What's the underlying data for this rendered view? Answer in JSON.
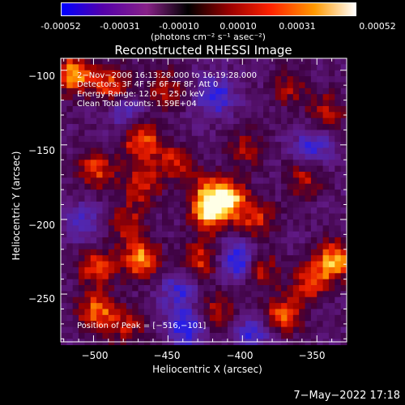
{
  "colorbar": {
    "ticks": [
      "-0.00052",
      "-0.00031",
      "-0.00010",
      "0.00010",
      "0.00031",
      "0.00052"
    ],
    "units_text": "(photons cm⁻² s⁻¹ asec⁻²)",
    "range": [
      -0.00052,
      0.00052
    ],
    "colors": [
      "#0000ff",
      "#5500aa",
      "#882288",
      "#000000",
      "#990000",
      "#ff2200",
      "#ff9900",
      "#ffffff"
    ]
  },
  "chart_data": {
    "type": "heatmap",
    "title": "Reconstructed RHESSI Image",
    "xlabel": "Heliocentric X (arcsec)",
    "ylabel": "Heliocentric Y (arcsec)",
    "xlim": [
      -522,
      -330
    ],
    "ylim": [
      -282,
      -92
    ],
    "x_ticks": [
      -500,
      -450,
      -400,
      -350
    ],
    "y_ticks": [
      -100,
      -150,
      -200,
      -250
    ],
    "x_tick_labels": [
      "−500",
      "−450",
      "−400",
      "−350"
    ],
    "y_tick_labels": [
      "−100",
      "−150",
      "−200",
      "−250"
    ],
    "annotations": [
      "2−Nov−2006 16:13:28.000 to 16:19:28.000",
      "Detectors: 3F 4F 5F 6F 7F 8F, Att 0",
      "Energy Range: 12.0 − 25.0 keV",
      "Clean     Total counts: 1.59E+04"
    ],
    "peak_label": "Position of Peak = [−516,−101]",
    "peak": [
      -516,
      -101
    ],
    "hotspots": [
      {
        "x": -516,
        "y": -101,
        "v": 1.0
      },
      {
        "x": -490,
        "y": -108,
        "v": 0.75
      },
      {
        "x": -455,
        "y": -110,
        "v": 0.55
      },
      {
        "x": -470,
        "y": -145,
        "v": 0.85
      },
      {
        "x": -500,
        "y": -165,
        "v": 0.7
      },
      {
        "x": -448,
        "y": -160,
        "v": 0.6
      },
      {
        "x": -470,
        "y": -175,
        "v": 0.65
      },
      {
        "x": -425,
        "y": -180,
        "v": 0.7
      },
      {
        "x": -410,
        "y": -185,
        "v": 0.9
      },
      {
        "x": -425,
        "y": -195,
        "v": 0.8
      },
      {
        "x": -392,
        "y": -198,
        "v": 0.6
      },
      {
        "x": -480,
        "y": -200,
        "v": 0.55
      },
      {
        "x": -470,
        "y": -225,
        "v": 0.95
      },
      {
        "x": -500,
        "y": -230,
        "v": 0.7
      },
      {
        "x": -430,
        "y": -225,
        "v": 0.65
      },
      {
        "x": -390,
        "y": -232,
        "v": 0.6
      },
      {
        "x": -340,
        "y": -225,
        "v": 0.95
      },
      {
        "x": -355,
        "y": -240,
        "v": 0.7
      },
      {
        "x": -500,
        "y": -260,
        "v": 0.8
      },
      {
        "x": -480,
        "y": -270,
        "v": 0.5
      },
      {
        "x": -420,
        "y": -260,
        "v": 0.55
      },
      {
        "x": -375,
        "y": -262,
        "v": 0.8
      },
      {
        "x": -400,
        "y": -150,
        "v": 0.5
      },
      {
        "x": -360,
        "y": -170,
        "v": 0.55
      },
      {
        "x": -370,
        "y": -110,
        "v": 0.45
      },
      {
        "x": -345,
        "y": -125,
        "v": 0.5
      }
    ],
    "coldspots": [
      {
        "x": -420,
        "y": -115,
        "v": -0.7
      },
      {
        "x": -355,
        "y": -150,
        "v": -0.6
      },
      {
        "x": -405,
        "y": -225,
        "v": -0.85
      },
      {
        "x": -440,
        "y": -270,
        "v": -0.8
      },
      {
        "x": -395,
        "y": -275,
        "v": -0.6
      },
      {
        "x": -480,
        "y": -125,
        "v": -0.5
      },
      {
        "x": -510,
        "y": -200,
        "v": -0.5
      },
      {
        "x": -445,
        "y": -245,
        "v": -0.55
      }
    ]
  },
  "timestamp": "7−May−2022 17:18"
}
